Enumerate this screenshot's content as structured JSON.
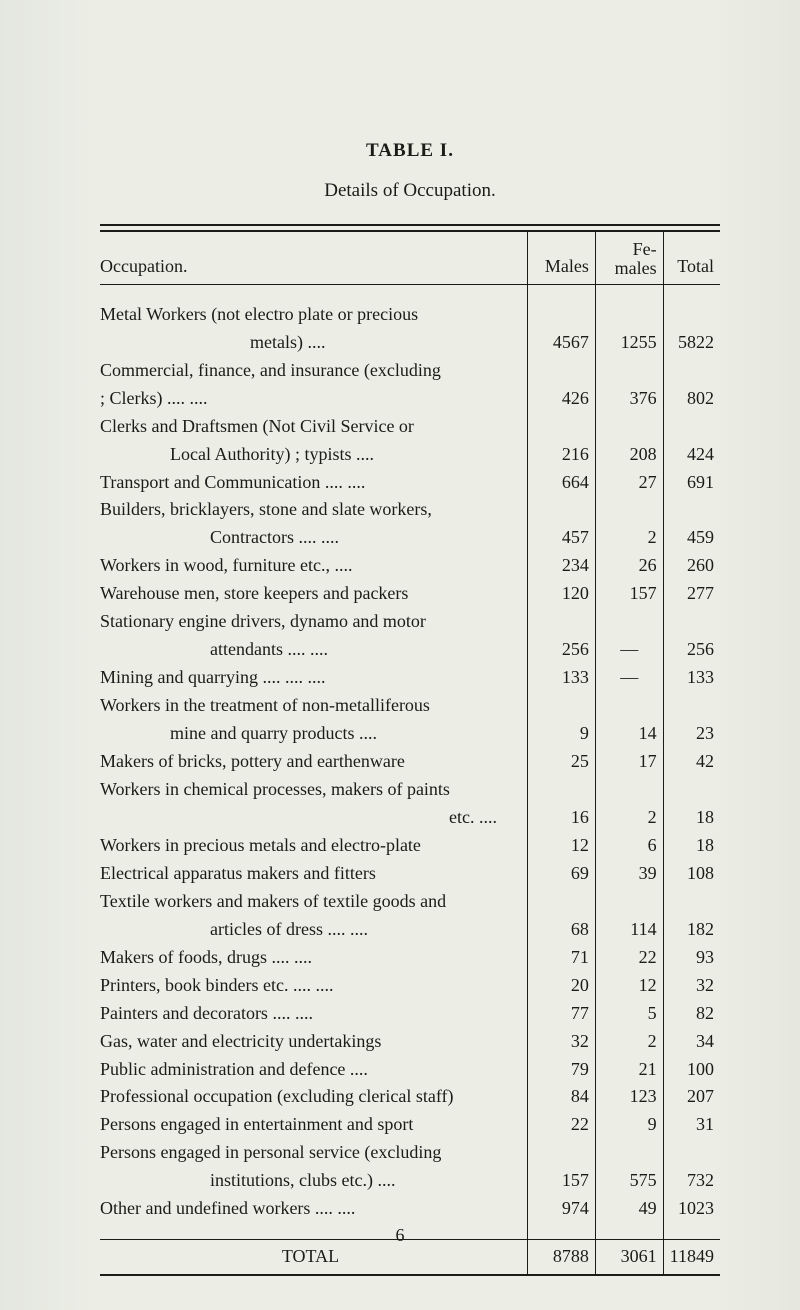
{
  "title": "TABLE I.",
  "subtitle": "Details of Occupation.",
  "columns": {
    "c1": "Occupation.",
    "c2": "Males",
    "c3_top": "Fe-",
    "c3_bot": "males",
    "c4": "Total"
  },
  "rows": [
    {
      "label_a": "Metal Workers (not electro plate or precious",
      "label_b": "metals)            ....",
      "m": "4567",
      "f": "1255",
      "t": "5822"
    },
    {
      "label_a": "Commercial, finance, and insurance (excluding",
      "label_b": ";                                     Clerks)    ....               ....",
      "m": "426",
      "f": "376",
      "t": "802"
    },
    {
      "label_a": "Clerks and Draftsmen (Not Civil Service or",
      "label_b": "Local Authority) ; typists   ....",
      "m": "216",
      "f": "208",
      "t": "424"
    },
    {
      "label": "Transport and Communication  ....              ....",
      "m": "664",
      "f": "27",
      "t": "691"
    },
    {
      "label_a": "Builders, bricklayers, stone and slate workers,",
      "label_b": "Contractors         ....               ....",
      "m": "457",
      "f": "2",
      "t": "459"
    },
    {
      "label": "Workers in wood, furniture etc.,                ....",
      "m": "234",
      "f": "26",
      "t": "260"
    },
    {
      "label": "Warehouse men, store keepers and packers",
      "m": "120",
      "f": "157",
      "t": "277"
    },
    {
      "label_a": "Stationary engine drivers, dynamo and motor",
      "label_b": "attendants           ....               ....",
      "m": "256",
      "f": "—",
      "t": "256"
    },
    {
      "label": "Mining and quarrying  ....             ....               ....",
      "m": "133",
      "f": "—",
      "t": "133"
    },
    {
      "label_a": "Workers in the treatment of non-metalliferous",
      "label_b": "mine and quarry products      ....",
      "m": "9",
      "f": "14",
      "t": "23"
    },
    {
      "label": "Makers of bricks, pottery and earthenware",
      "m": "25",
      "f": "17",
      "t": "42"
    },
    {
      "label_a": "Workers in chemical processes, makers of paints",
      "label_b": "etc.  ....",
      "m": "16",
      "f": "2",
      "t": "18"
    },
    {
      "label": "Workers in precious metals and electro-plate",
      "m": "12",
      "f": "6",
      "t": "18"
    },
    {
      "label": "Electrical apparatus makers and fitters",
      "m": "69",
      "f": "39",
      "t": "108"
    },
    {
      "label_a": "Textile workers and makers of textile goods and",
      "label_b": "articles of dress    ....               ....",
      "m": "68",
      "f": "114",
      "t": "182"
    },
    {
      "label": "Makers of foods, drugs                  ....               ....",
      "m": "71",
      "f": "22",
      "t": "93"
    },
    {
      "label": "Printers, book binders etc.           ....               ....",
      "m": "20",
      "f": "12",
      "t": "32"
    },
    {
      "label": "Painters and decorators                ....               ....",
      "m": "77",
      "f": "5",
      "t": "82"
    },
    {
      "label": "Gas, water and electricity undertakings",
      "m": "32",
      "f": "2",
      "t": "34"
    },
    {
      "label": "Public administration and defence              ....",
      "m": "79",
      "f": "21",
      "t": "100"
    },
    {
      "label": "Professional occupation (excluding clerical staff)",
      "m": "84",
      "f": "123",
      "t": "207"
    },
    {
      "label": "Persons engaged in entertainment and sport",
      "m": "22",
      "f": "9",
      "t": "31"
    },
    {
      "label_a": "Persons engaged in personal service (excluding",
      "label_b": "institutions, clubs etc.)       ....",
      "m": "157",
      "f": "575",
      "t": "732"
    },
    {
      "label": "Other and undefined workers      ....               ....",
      "m": "974",
      "f": "49",
      "t": "1023"
    }
  ],
  "total": {
    "label": "TOTAL",
    "m": "8788",
    "f": "3061",
    "t": "11849"
  },
  "pagenum": "6",
  "colors": {
    "bg": "#ebeee5",
    "text": "#1b1b18",
    "rule": "#1b1b18"
  }
}
